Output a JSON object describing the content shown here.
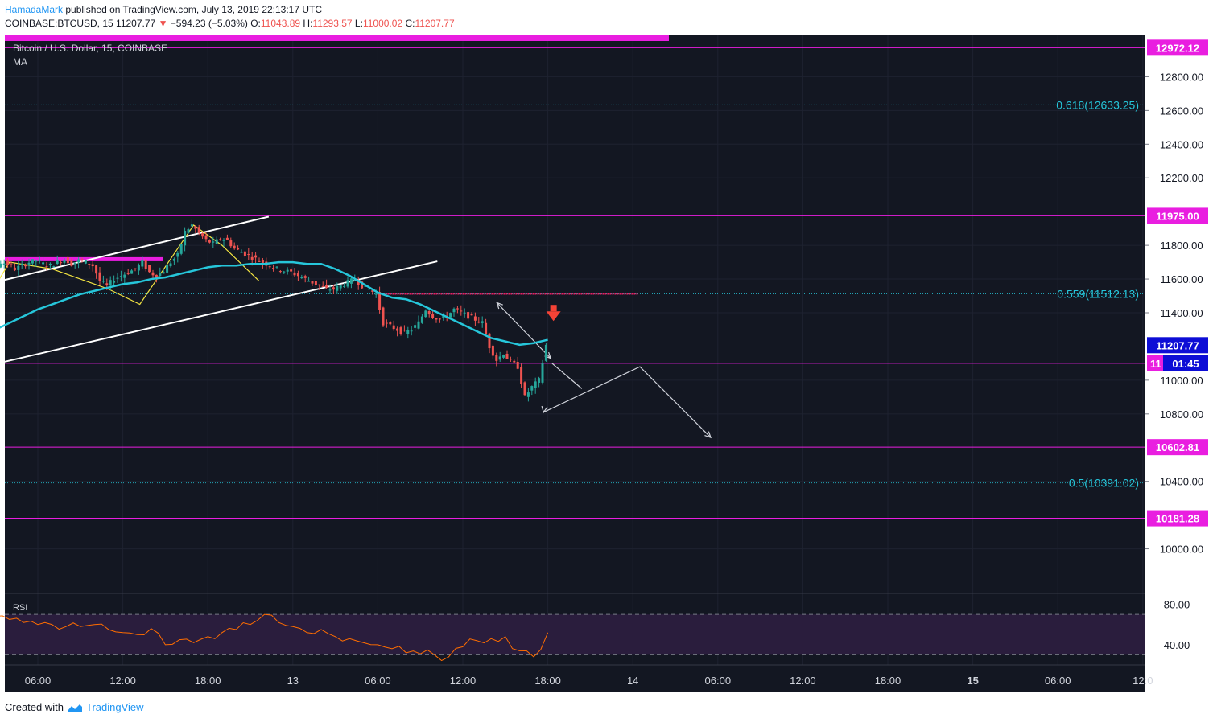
{
  "header": {
    "author": "HamadaMark",
    "published_text": "published on TradingView.com, July 13, 2019 22:13:17 UTC"
  },
  "ohlc": {
    "symbol": "COINBASE:BTCUSD, 15",
    "last": "11207.77",
    "change_arrow": "▼",
    "change": "−594.23 (−5.03%)",
    "o_label": "O:",
    "o": "11043.89",
    "h_label": "H:",
    "h": "11293.57",
    "l_label": "L:",
    "l": "11000.02",
    "c_label": "C:",
    "c": "11207.77"
  },
  "legend": {
    "title": "Bitcoin / U.S. Dollar, 15, COINBASE",
    "indicator": "MA",
    "rsi_label": "RSI"
  },
  "footer": {
    "created_with": "Created with",
    "brand": "TradingView"
  },
  "colors": {
    "background": "#131722",
    "up": "#26a69a",
    "down": "#ef5350",
    "ma": "#26c6da",
    "magenta": "#e91ee0",
    "fib": "#26c6da",
    "channel": "#ffffff",
    "zigzag": "#f5e642",
    "rsi": "#ff6d00",
    "rsi_band": "#2a1d3d"
  },
  "chart_data": {
    "type": "candlestick",
    "symbol": "BTCUSD",
    "timeframe": "15",
    "exchange": "COINBASE",
    "ylim": [
      9750,
      13050
    ],
    "y_ticks": [
      10000,
      10400,
      10800,
      11000,
      11400,
      11600,
      11800,
      12200,
      12400,
      12600,
      12800
    ],
    "y_tick_labels": [
      "10000.00",
      "10400.00",
      "10800.00",
      "11000.00",
      "11400.00",
      "11600.00",
      "11800.00",
      "12200.00",
      "12400.00",
      "12600.00",
      "12800.00"
    ],
    "x_ticks": [
      {
        "label": "06:00",
        "h": 6,
        "bold": false
      },
      {
        "label": "12:00",
        "h": 12,
        "bold": false
      },
      {
        "label": "18:00",
        "h": 18,
        "bold": false
      },
      {
        "label": "13",
        "h": 24,
        "bold": false
      },
      {
        "label": "06:00",
        "h": 30,
        "bold": false
      },
      {
        "label": "12:00",
        "h": 36,
        "bold": false
      },
      {
        "label": "18:00",
        "h": 42,
        "bold": false
      },
      {
        "label": "14",
        "h": 48,
        "bold": false
      },
      {
        "label": "06:00",
        "h": 54,
        "bold": false
      },
      {
        "label": "12:00",
        "h": 60,
        "bold": false
      },
      {
        "label": "18:00",
        "h": 66,
        "bold": false
      },
      {
        "label": "15",
        "h": 72,
        "bold": true
      },
      {
        "label": "06:00",
        "h": 78,
        "bold": false
      },
      {
        "label": "12:0",
        "h": 84,
        "bold": false
      }
    ],
    "price_path": [
      [
        0.0,
        11320
      ],
      [
        0.5,
        11280
      ],
      [
        1.0,
        11150
      ],
      [
        1.5,
        11320
      ],
      [
        2.0,
        11380
      ],
      [
        2.5,
        11420
      ],
      [
        3.0,
        11660
      ],
      [
        3.5,
        11700
      ],
      [
        4.0,
        11690
      ],
      [
        4.5,
        11660
      ],
      [
        5.0,
        11680
      ],
      [
        5.5,
        11700
      ],
      [
        6.0,
        11710
      ],
      [
        6.5,
        11690
      ],
      [
        7.0,
        11680
      ],
      [
        7.5,
        11700
      ],
      [
        8.0,
        11720
      ],
      [
        8.5,
        11690
      ],
      [
        9.0,
        11710
      ],
      [
        9.5,
        11700
      ],
      [
        10.0,
        11680
      ],
      [
        10.5,
        11590
      ],
      [
        11.0,
        11560
      ],
      [
        11.5,
        11600
      ],
      [
        12.0,
        11620
      ],
      [
        12.5,
        11640
      ],
      [
        13.0,
        11660
      ],
      [
        13.5,
        11700
      ],
      [
        14.0,
        11640
      ],
      [
        14.5,
        11620
      ],
      [
        15.0,
        11650
      ],
      [
        15.5,
        11700
      ],
      [
        16.0,
        11740
      ],
      [
        16.5,
        11880
      ],
      [
        17.0,
        11920
      ],
      [
        17.5,
        11870
      ],
      [
        18.0,
        11830
      ],
      [
        18.5,
        11810
      ],
      [
        19.0,
        11840
      ],
      [
        19.5,
        11830
      ],
      [
        20.0,
        11780
      ],
      [
        20.5,
        11760
      ],
      [
        21.0,
        11740
      ],
      [
        21.5,
        11720
      ],
      [
        22.0,
        11700
      ],
      [
        22.5,
        11680
      ],
      [
        23.0,
        11660
      ],
      [
        23.5,
        11650
      ],
      [
        24.0,
        11640
      ],
      [
        24.5,
        11620
      ],
      [
        25.0,
        11600
      ],
      [
        25.5,
        11580
      ],
      [
        26.0,
        11560
      ],
      [
        26.5,
        11540
      ],
      [
        27.0,
        11540
      ],
      [
        27.5,
        11560
      ],
      [
        28.0,
        11580
      ],
      [
        28.5,
        11600
      ],
      [
        29.0,
        11560
      ],
      [
        29.5,
        11540
      ],
      [
        30.0,
        11510
      ],
      [
        30.5,
        11340
      ],
      [
        31.0,
        11320
      ],
      [
        31.5,
        11300
      ],
      [
        32.0,
        11280
      ],
      [
        32.5,
        11300
      ],
      [
        33.0,
        11340
      ],
      [
        33.5,
        11420
      ],
      [
        34.0,
        11380
      ],
      [
        34.5,
        11360
      ],
      [
        35.0,
        11380
      ],
      [
        35.5,
        11420
      ],
      [
        36.0,
        11400
      ],
      [
        36.5,
        11380
      ],
      [
        37.0,
        11360
      ],
      [
        37.5,
        11340
      ],
      [
        38.0,
        11200
      ],
      [
        38.5,
        11120
      ],
      [
        39.0,
        11160
      ],
      [
        39.5,
        11110
      ],
      [
        40.0,
        11080
      ],
      [
        40.5,
        10900
      ],
      [
        41.0,
        10960
      ],
      [
        41.5,
        11000
      ],
      [
        42.0,
        11207.77
      ]
    ],
    "ma_path": [
      [
        0.0,
        11360
      ],
      [
        1.0,
        11310
      ],
      [
        2.0,
        11290
      ],
      [
        3.0,
        11300
      ],
      [
        4.0,
        11340
      ],
      [
        5.0,
        11380
      ],
      [
        6.0,
        11420
      ],
      [
        7.0,
        11450
      ],
      [
        8.0,
        11480
      ],
      [
        9.0,
        11510
      ],
      [
        10.0,
        11530
      ],
      [
        11.0,
        11550
      ],
      [
        12.0,
        11570
      ],
      [
        13.0,
        11580
      ],
      [
        14.0,
        11600
      ],
      [
        15.0,
        11610
      ],
      [
        16.0,
        11630
      ],
      [
        17.0,
        11650
      ],
      [
        18.0,
        11670
      ],
      [
        19.0,
        11680
      ],
      [
        20.0,
        11680
      ],
      [
        21.0,
        11690
      ],
      [
        22.0,
        11690
      ],
      [
        23.0,
        11700
      ],
      [
        24.0,
        11700
      ],
      [
        25.0,
        11690
      ],
      [
        26.0,
        11690
      ],
      [
        27.0,
        11660
      ],
      [
        28.0,
        11620
      ],
      [
        29.0,
        11570
      ],
      [
        30.0,
        11520
      ],
      [
        31.0,
        11490
      ],
      [
        32.0,
        11480
      ],
      [
        33.0,
        11450
      ],
      [
        34.0,
        11410
      ],
      [
        35.0,
        11370
      ],
      [
        36.0,
        11330
      ],
      [
        37.0,
        11290
      ],
      [
        38.0,
        11250
      ],
      [
        39.0,
        11230
      ],
      [
        40.0,
        11210
      ],
      [
        41.0,
        11220
      ],
      [
        42.0,
        11240
      ]
    ],
    "horizontal_lines": [
      {
        "price": 12972.12,
        "label": "12972.12",
        "color": "magenta"
      },
      {
        "price": 11975.0,
        "label": "11975.00",
        "color": "magenta"
      },
      {
        "price": 11100.0,
        "label": "11",
        "color": "magenta"
      },
      {
        "price": 10602.81,
        "label": "10602.81",
        "color": "magenta"
      },
      {
        "price": 10181.28,
        "label": "10181.28",
        "color": "magenta"
      }
    ],
    "fib_levels": [
      {
        "price": 12633.25,
        "label": "0.618(12633.25)"
      },
      {
        "price": 11512.13,
        "label": "0.559(11512.13)"
      },
      {
        "price": 10391.02,
        "label": "0.5(10391.02)"
      }
    ],
    "current_price": {
      "price": 11207.77,
      "label": "11207.77",
      "countdown": "01:45"
    },
    "rsi": {
      "ylim": [
        20,
        90
      ],
      "y_ticks": [
        40,
        80
      ],
      "y_tick_labels": [
        "40.00",
        "80.00"
      ],
      "band": [
        30,
        70
      ],
      "values": [
        [
          0,
          45
        ],
        [
          1,
          48
        ],
        [
          2,
          52
        ],
        [
          3,
          68
        ],
        [
          4,
          65
        ],
        [
          5,
          62
        ],
        [
          6,
          60
        ],
        [
          7,
          60
        ],
        [
          8,
          58
        ],
        [
          9,
          58
        ],
        [
          10,
          60
        ],
        [
          11,
          55
        ],
        [
          12,
          52
        ],
        [
          13,
          50
        ],
        [
          14,
          56
        ],
        [
          15,
          40
        ],
        [
          16,
          45
        ],
        [
          17,
          42
        ],
        [
          18,
          48
        ],
        [
          19,
          52
        ],
        [
          20,
          55
        ],
        [
          21,
          60
        ],
        [
          22,
          70
        ],
        [
          23,
          62
        ],
        [
          24,
          58
        ],
        [
          25,
          52
        ],
        [
          26,
          55
        ],
        [
          27,
          48
        ],
        [
          28,
          46
        ],
        [
          29,
          42
        ],
        [
          30,
          40
        ],
        [
          31,
          36
        ],
        [
          32,
          32
        ],
        [
          33,
          31
        ],
        [
          34,
          30
        ],
        [
          35,
          28
        ],
        [
          36,
          38
        ],
        [
          37,
          44
        ],
        [
          38,
          46
        ],
        [
          39,
          48
        ],
        [
          40,
          34
        ],
        [
          41,
          28
        ],
        [
          42,
          52
        ]
      ]
    }
  }
}
